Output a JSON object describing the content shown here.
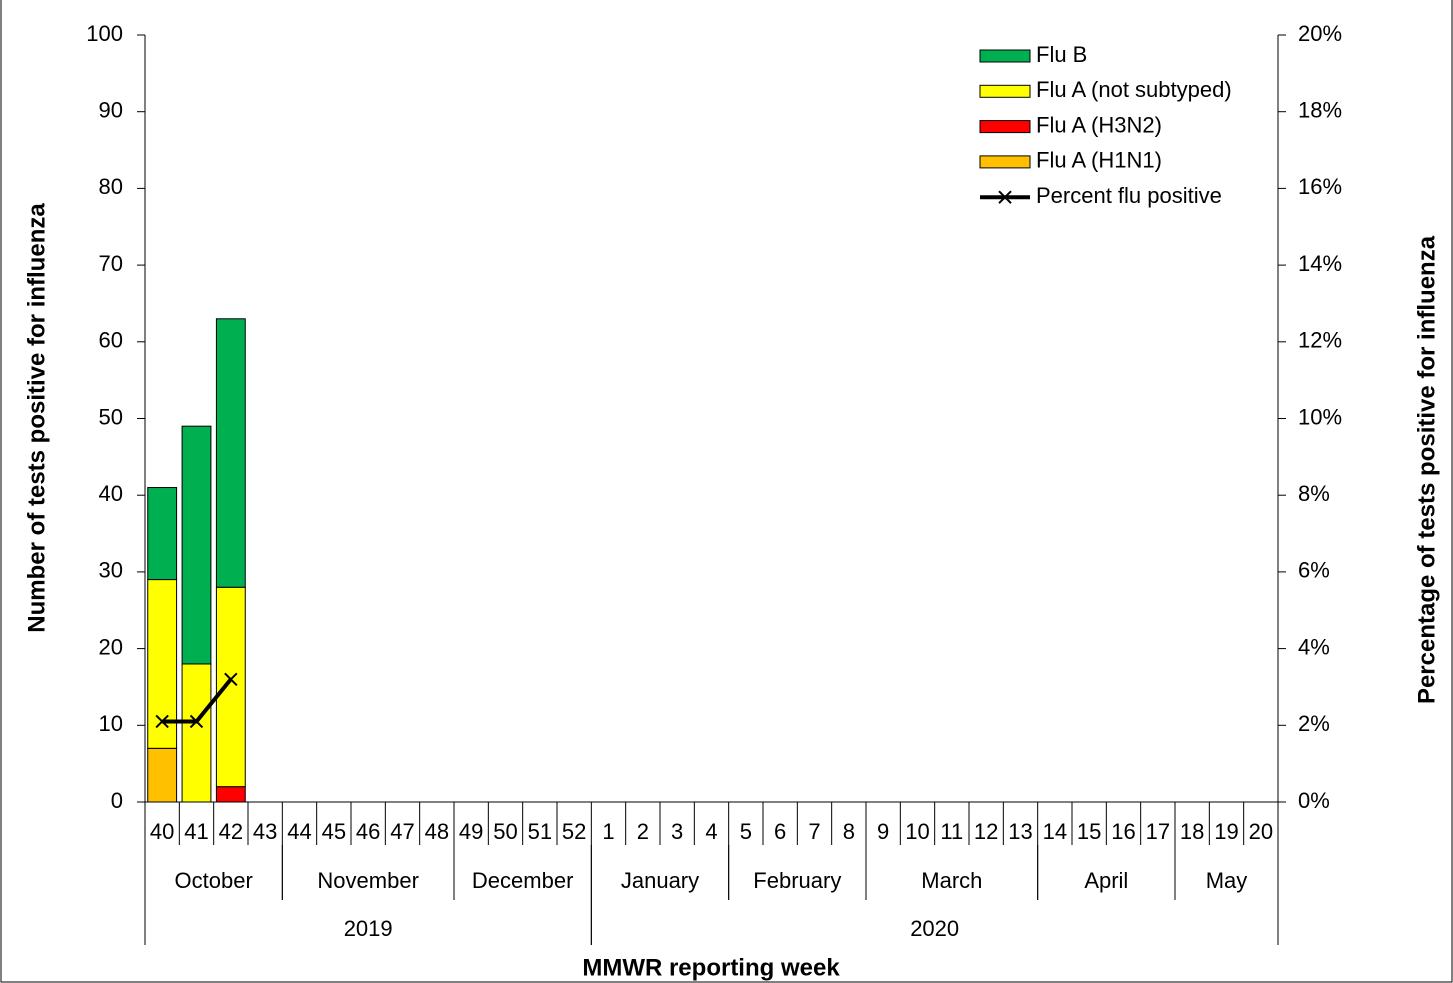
{
  "chart_data": {
    "type": "bar",
    "categories": [
      "40",
      "41",
      "42",
      "43",
      "44",
      "45",
      "46",
      "47",
      "48",
      "49",
      "50",
      "51",
      "52",
      "1",
      "2",
      "3",
      "4",
      "5",
      "6",
      "7",
      "8",
      "9",
      "10",
      "11",
      "12",
      "13",
      "14",
      "15",
      "16",
      "17",
      "18",
      "19",
      "20"
    ],
    "months": [
      {
        "label": "October",
        "span": 4
      },
      {
        "label": "November",
        "span": 5
      },
      {
        "label": "December",
        "span": 4
      },
      {
        "label": "January",
        "span": 4
      },
      {
        "label": "February",
        "span": 4
      },
      {
        "label": "March",
        "span": 5
      },
      {
        "label": "April",
        "span": 4
      },
      {
        "label": "May",
        "span": 3
      }
    ],
    "years": [
      {
        "label": "2019",
        "span": 13
      },
      {
        "label": "2020",
        "span": 20
      }
    ],
    "x_label": "MMWR reporting week",
    "y_label": "Number of tests positive for influenza",
    "y2_label": "Percentage  of  tests  positive for influenza",
    "ylim": [
      0,
      100
    ],
    "yticks": [
      0,
      10,
      20,
      30,
      40,
      50,
      60,
      70,
      80,
      90,
      100
    ],
    "y2lim": [
      0,
      20
    ],
    "y2ticks": [
      {
        "value": 0,
        "label": "0%"
      },
      {
        "value": 2,
        "label": "2%"
      },
      {
        "value": 4,
        "label": "4%"
      },
      {
        "value": 6,
        "label": "6%"
      },
      {
        "value": 8,
        "label": "8%"
      },
      {
        "value": 10,
        "label": "10%"
      },
      {
        "value": 12,
        "label": "12%"
      },
      {
        "value": 14,
        "label": "14%"
      },
      {
        "value": 16,
        "label": "16%"
      },
      {
        "value": 18,
        "label": "18%"
      },
      {
        "value": 20,
        "label": "20%"
      }
    ],
    "stacked": true,
    "legend": "top-right",
    "series": [
      {
        "name": "Flu A (H1N1)",
        "color": "#ffc000",
        "values": [
          7,
          0,
          0,
          null,
          null,
          null,
          null,
          null,
          null,
          null,
          null,
          null,
          null,
          null,
          null,
          null,
          null,
          null,
          null,
          null,
          null,
          null,
          null,
          null,
          null,
          null,
          null,
          null,
          null,
          null,
          null,
          null,
          null
        ]
      },
      {
        "name": "Flu A (H3N2)",
        "color": "#ff0000",
        "values": [
          0,
          0,
          2,
          null,
          null,
          null,
          null,
          null,
          null,
          null,
          null,
          null,
          null,
          null,
          null,
          null,
          null,
          null,
          null,
          null,
          null,
          null,
          null,
          null,
          null,
          null,
          null,
          null,
          null,
          null,
          null,
          null,
          null
        ]
      },
      {
        "name": "Flu A (not subtyped)",
        "color": "#ffff00",
        "values": [
          22,
          18,
          26,
          null,
          null,
          null,
          null,
          null,
          null,
          null,
          null,
          null,
          null,
          null,
          null,
          null,
          null,
          null,
          null,
          null,
          null,
          null,
          null,
          null,
          null,
          null,
          null,
          null,
          null,
          null,
          null,
          null,
          null
        ]
      },
      {
        "name": "Flu B",
        "color": "#00b050",
        "values": [
          12,
          31,
          35,
          null,
          null,
          null,
          null,
          null,
          null,
          null,
          null,
          null,
          null,
          null,
          null,
          null,
          null,
          null,
          null,
          null,
          null,
          null,
          null,
          null,
          null,
          null,
          null,
          null,
          null,
          null,
          null,
          null,
          null
        ]
      },
      {
        "name": "Percent flu positive",
        "color": "#000000",
        "type": "line",
        "axis": "y2",
        "values": [
          2.1,
          2.1,
          3.2,
          null,
          null,
          null,
          null,
          null,
          null,
          null,
          null,
          null,
          null,
          null,
          null,
          null,
          null,
          null,
          null,
          null,
          null,
          null,
          null,
          null,
          null,
          null,
          null,
          null,
          null,
          null,
          null,
          null,
          null
        ]
      }
    ]
  }
}
